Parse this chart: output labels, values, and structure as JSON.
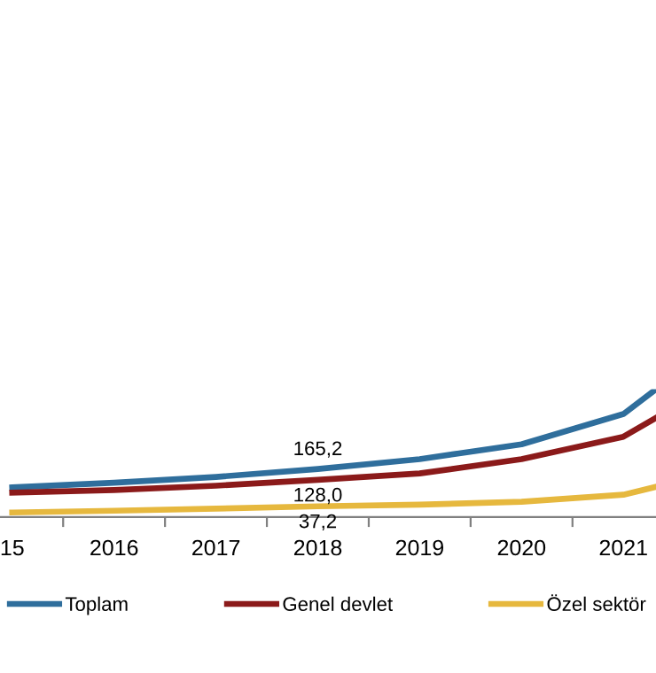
{
  "chart_data": {
    "type": "line",
    "x": [
      2015,
      2016,
      2017,
      2018,
      2019,
      2020,
      2021,
      2021.32
    ],
    "series": [
      {
        "name": "Toplam",
        "color": "#2f6e9c",
        "values": [
          102,
          118,
          138,
          165.2,
          199,
          250,
          354,
          439
        ],
        "value_labels": [
          null,
          null,
          null,
          "165,2",
          null,
          null,
          null,
          null
        ]
      },
      {
        "name": "Genel devlet",
        "color": "#8b1a1a",
        "values": [
          84,
          93,
          108,
          128.0,
          150,
          199,
          276,
          341
        ],
        "value_labels": [
          null,
          null,
          null,
          "128,0",
          null,
          null,
          null,
          null
        ]
      },
      {
        "name": "Özel sektör",
        "color": "#e6b83e",
        "values": [
          16,
          22,
          29,
          37.2,
          43,
          53,
          77,
          104
        ],
        "value_labels": [
          null,
          null,
          null,
          "37,2",
          null,
          null,
          null,
          null
        ]
      }
    ],
    "xlim": [
      2014.88,
      2021.32
    ],
    "xticks": [
      {
        "value": 2015,
        "label": "15"
      },
      {
        "value": 2015.5,
        "label": null
      },
      2016,
      {
        "value": 2016.5,
        "label": null
      },
      2017,
      {
        "value": 2017.5,
        "label": null
      },
      2018,
      {
        "value": 2018.5,
        "label": null
      },
      2019,
      {
        "value": 2019.5,
        "label": null
      },
      2020,
      {
        "value": 2020.5,
        "label": null
      },
      2021
    ],
    "tick_labels": "x",
    "grid": false,
    "legend": "bottom"
  }
}
